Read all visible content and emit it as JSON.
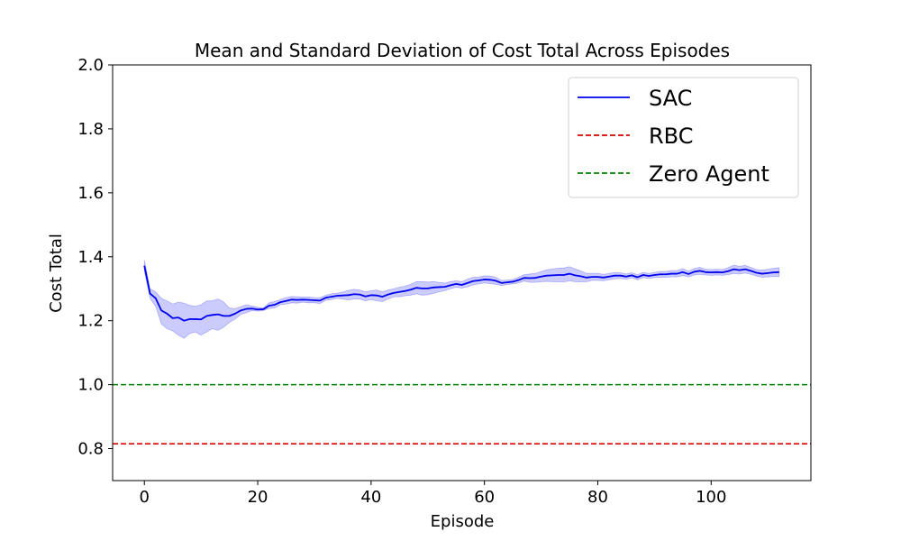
{
  "chart_data": {
    "type": "line",
    "title": "Mean and Standard Deviation of Cost Total Across Episodes",
    "xlabel": "Episode",
    "ylabel": "Cost Total",
    "xlim": [
      -5.6,
      117.6
    ],
    "ylim": [
      0.7,
      2.0
    ],
    "x_ticks": [
      0,
      20,
      40,
      60,
      80,
      100
    ],
    "y_ticks": [
      0.8,
      1.0,
      1.2,
      1.4,
      1.6,
      1.8,
      2.0
    ],
    "x_tick_labels": [
      "0",
      "20",
      "40",
      "60",
      "80",
      "100"
    ],
    "y_tick_labels": [
      "0.8",
      "1.0",
      "1.2",
      "1.4",
      "1.6",
      "1.8",
      "2.0"
    ],
    "grid": false,
    "legend_position": "top-right",
    "series": [
      {
        "name": "SAC",
        "style": "solid",
        "color": "#0000ee",
        "band_color": "#0000ee",
        "x": [
          0,
          1,
          2,
          3,
          4,
          5,
          6,
          7,
          8,
          9,
          10,
          11,
          12,
          13,
          14,
          15,
          16,
          17,
          18,
          19,
          20,
          21,
          22,
          23,
          24,
          25,
          26,
          27,
          28,
          29,
          30,
          31,
          32,
          33,
          34,
          35,
          36,
          37,
          38,
          39,
          40,
          41,
          42,
          43,
          44,
          45,
          46,
          47,
          48,
          49,
          50,
          51,
          52,
          53,
          54,
          55,
          56,
          57,
          58,
          59,
          60,
          61,
          62,
          63,
          64,
          65,
          66,
          67,
          68,
          69,
          70,
          71,
          72,
          73,
          74,
          75,
          76,
          77,
          78,
          79,
          80,
          81,
          82,
          83,
          84,
          85,
          86,
          87,
          88,
          89,
          90,
          91,
          92,
          93,
          94,
          95,
          96,
          97,
          98,
          99,
          100,
          101,
          102,
          103,
          104,
          105,
          106,
          107,
          108,
          109,
          110,
          111,
          112
        ],
        "values": [
          1.372,
          1.285,
          1.27,
          1.232,
          1.222,
          1.208,
          1.21,
          1.2,
          1.205,
          1.205,
          1.204,
          1.215,
          1.218,
          1.22,
          1.215,
          1.215,
          1.222,
          1.232,
          1.237,
          1.238,
          1.235,
          1.236,
          1.247,
          1.25,
          1.258,
          1.262,
          1.266,
          1.265,
          1.266,
          1.265,
          1.264,
          1.263,
          1.272,
          1.275,
          1.278,
          1.279,
          1.28,
          1.283,
          1.282,
          1.276,
          1.28,
          1.279,
          1.275,
          1.282,
          1.287,
          1.29,
          1.293,
          1.297,
          1.303,
          1.301,
          1.301,
          1.304,
          1.305,
          1.306,
          1.311,
          1.315,
          1.312,
          1.318,
          1.324,
          1.326,
          1.329,
          1.328,
          1.325,
          1.318,
          1.32,
          1.322,
          1.327,
          1.334,
          1.333,
          1.334,
          1.338,
          1.341,
          1.342,
          1.343,
          1.343,
          1.347,
          1.342,
          1.339,
          1.335,
          1.337,
          1.337,
          1.335,
          1.338,
          1.341,
          1.341,
          1.338,
          1.342,
          1.336,
          1.343,
          1.34,
          1.343,
          1.345,
          1.345,
          1.347,
          1.347,
          1.352,
          1.346,
          1.353,
          1.356,
          1.352,
          1.351,
          1.352,
          1.351,
          1.355,
          1.361,
          1.358,
          1.361,
          1.356,
          1.35,
          1.347,
          1.349,
          1.351,
          1.352
        ],
        "band_lower": [
          1.355,
          1.27,
          1.245,
          1.19,
          1.175,
          1.168,
          1.155,
          1.145,
          1.16,
          1.165,
          1.155,
          1.165,
          1.175,
          1.17,
          1.18,
          1.195,
          1.205,
          1.22,
          1.225,
          1.232,
          1.23,
          1.232,
          1.238,
          1.24,
          1.25,
          1.252,
          1.256,
          1.255,
          1.258,
          1.256,
          1.256,
          1.254,
          1.264,
          1.266,
          1.27,
          1.268,
          1.265,
          1.268,
          1.268,
          1.262,
          1.266,
          1.262,
          1.26,
          1.268,
          1.275,
          1.275,
          1.278,
          1.28,
          1.284,
          1.28,
          1.281,
          1.286,
          1.29,
          1.294,
          1.3,
          1.305,
          1.302,
          1.306,
          1.312,
          1.315,
          1.318,
          1.316,
          1.314,
          1.31,
          1.313,
          1.315,
          1.318,
          1.324,
          1.32,
          1.32,
          1.322,
          1.323,
          1.322,
          1.322,
          1.321,
          1.325,
          1.322,
          1.322,
          1.322,
          1.326,
          1.326,
          1.325,
          1.328,
          1.331,
          1.332,
          1.33,
          1.334,
          1.328,
          1.335,
          1.332,
          1.335,
          1.336,
          1.336,
          1.337,
          1.337,
          1.341,
          1.337,
          1.343,
          1.345,
          1.343,
          1.342,
          1.343,
          1.342,
          1.344,
          1.348,
          1.346,
          1.349,
          1.345,
          1.34,
          1.336,
          1.337,
          1.338,
          1.338
        ],
        "band_upper": [
          1.39,
          1.3,
          1.29,
          1.27,
          1.262,
          1.252,
          1.258,
          1.255,
          1.248,
          1.245,
          1.25,
          1.262,
          1.262,
          1.268,
          1.258,
          1.24,
          1.238,
          1.244,
          1.25,
          1.246,
          1.242,
          1.24,
          1.256,
          1.26,
          1.266,
          1.272,
          1.276,
          1.275,
          1.274,
          1.274,
          1.272,
          1.272,
          1.28,
          1.284,
          1.286,
          1.29,
          1.295,
          1.298,
          1.296,
          1.29,
          1.294,
          1.296,
          1.29,
          1.296,
          1.3,
          1.305,
          1.308,
          1.314,
          1.322,
          1.322,
          1.321,
          1.322,
          1.32,
          1.318,
          1.322,
          1.325,
          1.322,
          1.33,
          1.336,
          1.337,
          1.34,
          1.34,
          1.336,
          1.326,
          1.327,
          1.329,
          1.336,
          1.344,
          1.346,
          1.348,
          1.354,
          1.359,
          1.362,
          1.364,
          1.365,
          1.369,
          1.362,
          1.356,
          1.348,
          1.348,
          1.348,
          1.345,
          1.348,
          1.351,
          1.35,
          1.346,
          1.35,
          1.344,
          1.351,
          1.348,
          1.351,
          1.354,
          1.354,
          1.357,
          1.357,
          1.363,
          1.355,
          1.363,
          1.367,
          1.361,
          1.36,
          1.361,
          1.36,
          1.366,
          1.374,
          1.37,
          1.373,
          1.367,
          1.36,
          1.358,
          1.361,
          1.364,
          1.366
        ]
      },
      {
        "name": "RBC",
        "style": "dashed",
        "color": "#dd0000",
        "y": 0.815
      },
      {
        "name": "Zero Agent",
        "style": "dashed",
        "color": "#008000",
        "y": 1.0
      }
    ]
  }
}
